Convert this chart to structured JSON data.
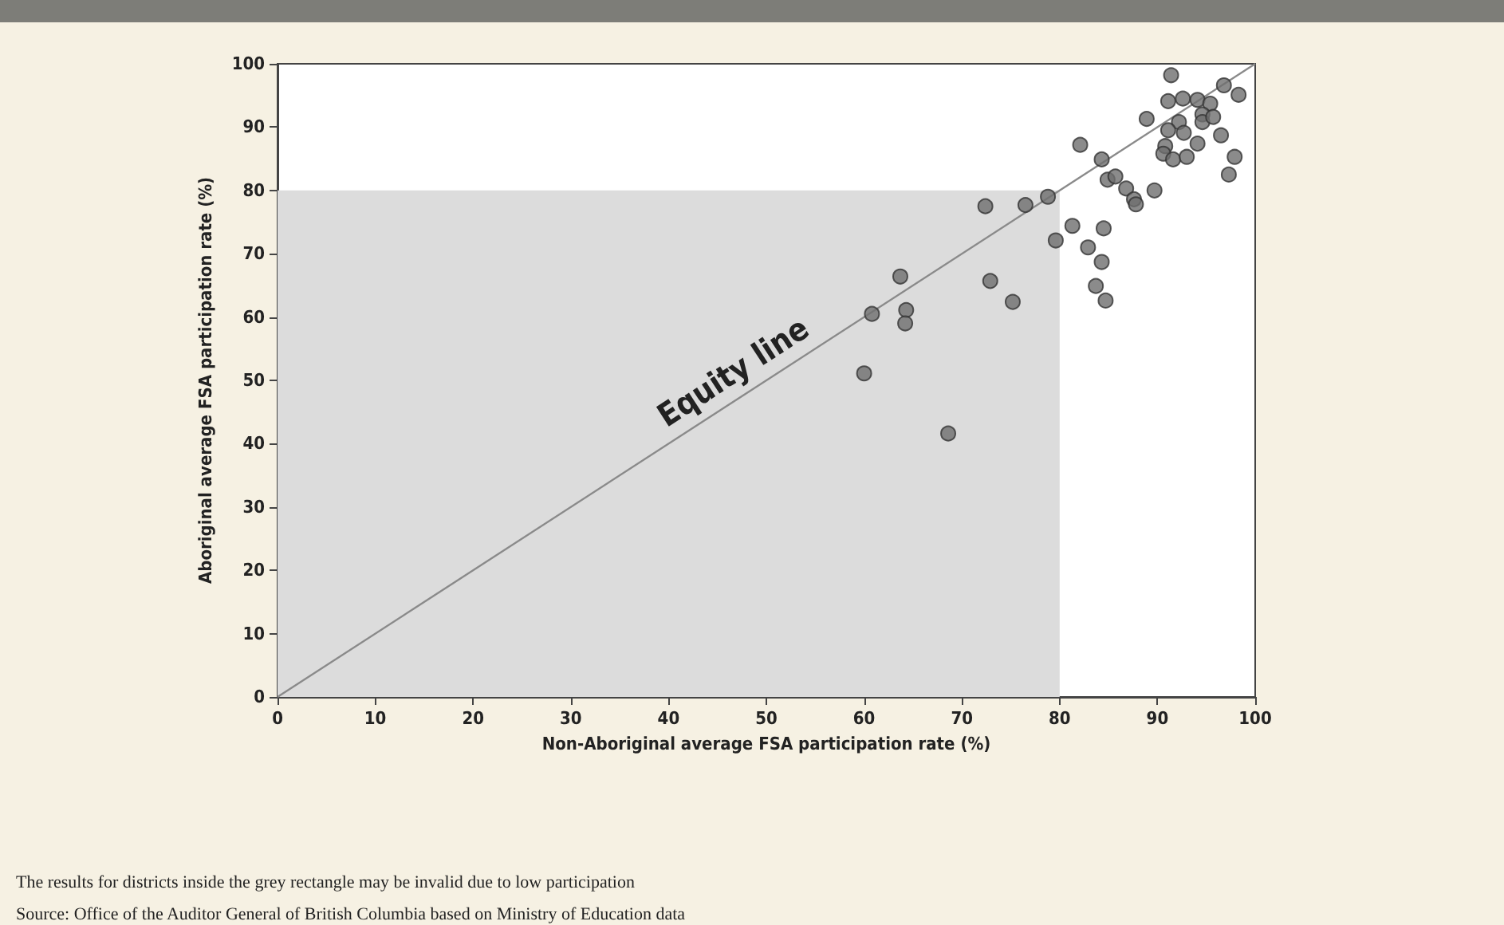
{
  "chart_data": {
    "type": "scatter",
    "xlabel": "Non-Aboriginal average FSA participation rate (%)",
    "ylabel": "Aboriginal average FSA participation rate (%)",
    "xlim": [
      0,
      100
    ],
    "ylim": [
      0,
      100
    ],
    "xticks": [
      0,
      10,
      20,
      30,
      40,
      50,
      60,
      70,
      80,
      90,
      100
    ],
    "yticks": [
      0,
      10,
      20,
      30,
      40,
      50,
      60,
      70,
      80,
      90,
      100
    ],
    "grid": false,
    "series": [
      {
        "type": "area",
        "color": "#dcdcdc",
        "x": [
          0,
          80
        ],
        "values": [
          80,
          80
        ]
      },
      {
        "type": "line",
        "color": "#8a8a8a",
        "x": [
          0,
          100
        ],
        "values": [
          0,
          100
        ],
        "marker": "none"
      },
      {
        "color": "#6e6e6e",
        "marker": "circle",
        "x": [
          60.0,
          68.6,
          60.8,
          63.7,
          64.3,
          64.2,
          72.9,
          75.2,
          72.4,
          76.5,
          78.8,
          79.6,
          81.3,
          84.5,
          82.9,
          84.3,
          83.7,
          84.7,
          84.9,
          85.7,
          86.8,
          87.6,
          87.8,
          84.3,
          82.1,
          88.9,
          91.4,
          91.1,
          92.6,
          94.1,
          95.4,
          94.6,
          96.8,
          98.3,
          92.2,
          91.1,
          92.7,
          94.6,
          95.7,
          96.5,
          94.1,
          90.8,
          90.6,
          91.6,
          93.0,
          97.9,
          97.3,
          89.7
        ],
        "values": [
          51.1,
          41.6,
          60.5,
          66.4,
          61.1,
          59.0,
          65.7,
          62.4,
          77.5,
          77.7,
          79.0,
          72.1,
          74.4,
          74.0,
          71.0,
          68.7,
          64.9,
          62.6,
          81.7,
          82.2,
          80.3,
          78.6,
          77.8,
          84.9,
          87.2,
          91.3,
          98.2,
          94.1,
          94.5,
          94.3,
          93.7,
          92.0,
          96.6,
          95.1,
          90.8,
          89.5,
          89.1,
          90.8,
          91.6,
          88.7,
          87.4,
          87.0,
          85.8,
          84.9,
          85.3,
          85.3,
          82.5,
          80.0
        ]
      }
    ],
    "annotations": [
      {
        "text": "Equity line",
        "x": 48,
        "y": 48
      },
      "The results for districts inside the grey rectangle may be invalid due to low participation",
      "Source: Office of the Auditor General of British Columbia based on Ministry of Education data"
    ]
  }
}
